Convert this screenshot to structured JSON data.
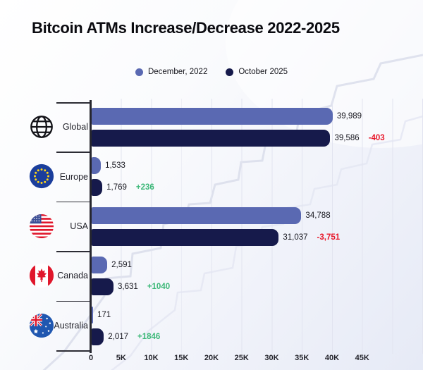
{
  "title": "Bitcoin ATMs Increase/Decrease 2022-2025",
  "legend": [
    {
      "label": "December, 2022",
      "color": "#5a69b2"
    },
    {
      "label": "October 2025",
      "color": "#161a4b"
    }
  ],
  "colors": {
    "series_2022": "#5a69b2",
    "series_2025": "#161a4b",
    "negative": "#e8182a",
    "positive": "#3cb878"
  },
  "chart_data": {
    "type": "bar",
    "orientation": "horizontal",
    "title": "Bitcoin ATMs Increase/Decrease 2022-2025",
    "categories": [
      "Global",
      "Europe",
      "USA",
      "Canada",
      "Australia"
    ],
    "icons": [
      "globe-icon",
      "eu-flag-icon",
      "usa-flag-icon",
      "canada-flag-icon",
      "australia-flag-icon"
    ],
    "series": [
      {
        "name": "December, 2022",
        "color": "#5a69b2",
        "values": [
          39989,
          1533,
          34788,
          2591,
          171
        ]
      },
      {
        "name": "October 2025",
        "color": "#161a4b",
        "values": [
          39586,
          1769,
          31037,
          3631,
          2017
        ]
      }
    ],
    "value_labels": {
      "series_2022": [
        "39,989",
        "1,533",
        "34,788",
        "2,591",
        "171"
      ],
      "series_2025": [
        "39,586",
        "1,769",
        "31,037",
        "3,631",
        "2,017"
      ]
    },
    "deltas": [
      {
        "text": "-403",
        "color": "#e8182a"
      },
      {
        "text": "+236",
        "color": "#3cb878"
      },
      {
        "text": "-3,751",
        "color": "#e8182a"
      },
      {
        "text": "+1040",
        "color": "#3cb878"
      },
      {
        "text": "+1846",
        "color": "#3cb878"
      }
    ],
    "x_ticks": [
      "0",
      "5K",
      "10K",
      "15K",
      "20K",
      "25K",
      "30K",
      "35K",
      "40K",
      "45K"
    ],
    "x_tick_values": [
      0,
      5000,
      10000,
      15000,
      20000,
      25000,
      30000,
      35000,
      40000,
      45000
    ],
    "xlim": [
      0,
      55000
    ],
    "grid": true,
    "legend_position": "top"
  }
}
